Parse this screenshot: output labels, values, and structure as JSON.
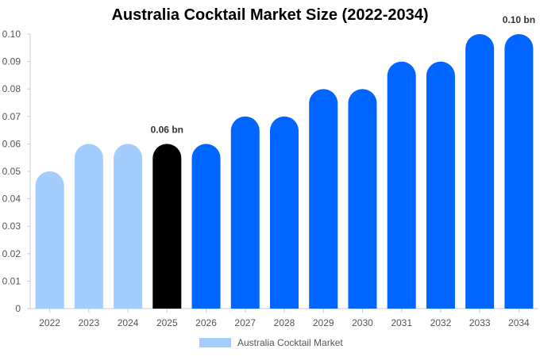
{
  "chart_data": {
    "type": "bar",
    "title": "Australia Cocktail Market Size (2022-2034)",
    "categories": [
      "2022",
      "2023",
      "2024",
      "2025",
      "2026",
      "2027",
      "2028",
      "2029",
      "2030",
      "2031",
      "2032",
      "2033",
      "2034"
    ],
    "series": [
      {
        "name": "Australia Cocktail Market",
        "values": [
          0.05,
          0.06,
          0.06,
          0.06,
          0.06,
          0.07,
          0.07,
          0.08,
          0.08,
          0.09,
          0.09,
          0.1,
          0.1
        ]
      }
    ],
    "bar_colors": [
      "#a3cdfd",
      "#a3cdfd",
      "#a3cdfd",
      "#000000",
      "#0066ff",
      "#0066ff",
      "#0066ff",
      "#0066ff",
      "#0066ff",
      "#0066ff",
      "#0066ff",
      "#0066ff",
      "#0066ff"
    ],
    "data_labels": [
      {
        "index": 3,
        "text": "0.06 bn"
      },
      {
        "index": 12,
        "text": "0.10 bn"
      }
    ],
    "y_ticks": [
      "0",
      "0.01",
      "0.02",
      "0.03",
      "0.04",
      "0.05",
      "0.06",
      "0.07",
      "0.08",
      "0.09",
      "0.10"
    ],
    "ylim": [
      0,
      0.1
    ],
    "grid": false,
    "legend_position": "bottom-center",
    "legend_color": "#a3cdfd"
  }
}
